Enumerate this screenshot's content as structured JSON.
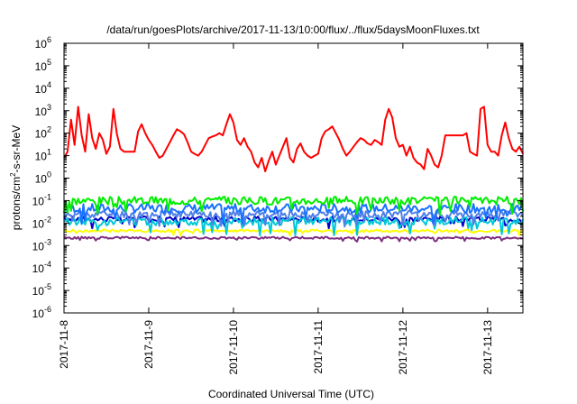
{
  "chart_data": {
    "type": "line",
    "title": "/data/run/goesPlots/archive/2017-11-13/10:00/flux/../flux/5daysMoonFluxes.txt",
    "xlabel": "Coordinated Universal Time (UTC)",
    "ylabel": {
      "base": "protons/cm",
      "sup": "2",
      "rest": "-s-sr-MeV"
    },
    "y_scale": "log",
    "ylim_exponents": [
      -6,
      6
    ],
    "y_ticks": [
      {
        "base": "10",
        "exp": "-6",
        "value": -6
      },
      {
        "base": "10",
        "exp": "-5",
        "value": -5
      },
      {
        "base": "10",
        "exp": "-4",
        "value": -4
      },
      {
        "base": "10",
        "exp": "-3",
        "value": -3
      },
      {
        "base": "10",
        "exp": "-2",
        "value": -2
      },
      {
        "base": "10",
        "exp": "-1",
        "value": -1
      },
      {
        "base": "10",
        "exp": "0",
        "value": 0
      },
      {
        "base": "10",
        "exp": "1",
        "value": 1
      },
      {
        "base": "10",
        "exp": "2",
        "value": 2
      },
      {
        "base": "10",
        "exp": "3",
        "value": 3
      },
      {
        "base": "10",
        "exp": "4",
        "value": 4
      },
      {
        "base": "10",
        "exp": "5",
        "value": 5
      },
      {
        "base": "10",
        "exp": "6",
        "value": 6
      }
    ],
    "x_range": [
      "2017-11-08T00:00",
      "2017-11-13T10:00"
    ],
    "x_ticks": [
      {
        "label": "2017-11-8",
        "date": "2017-11-08T00:00"
      },
      {
        "label": "2017-11-9",
        "date": "2017-11-09T00:00"
      },
      {
        "label": "2017-11-10",
        "date": "2017-11-10T00:00"
      },
      {
        "label": "2017-11-11",
        "date": "2017-11-11T00:00"
      },
      {
        "label": "2017-11-12",
        "date": "2017-11-12T00:00"
      },
      {
        "label": "2017-11-13",
        "date": "2017-11-13T00:00"
      }
    ],
    "grid": false,
    "legend": "none",
    "series": [
      {
        "color": "#ff0000",
        "points": [
          [
            "2017-11-08T00:00",
            8
          ],
          [
            "2017-11-08T01:00",
            15
          ],
          [
            "2017-11-08T02:00",
            400
          ],
          [
            "2017-11-08T03:00",
            30
          ],
          [
            "2017-11-08T04:00",
            1500
          ],
          [
            "2017-11-08T05:00",
            80
          ],
          [
            "2017-11-08T06:00",
            15
          ],
          [
            "2017-11-08T07:00",
            700
          ],
          [
            "2017-11-08T08:00",
            60
          ],
          [
            "2017-11-08T09:00",
            20
          ],
          [
            "2017-11-08T10:00",
            100
          ],
          [
            "2017-11-08T11:00",
            50
          ],
          [
            "2017-11-08T12:00",
            12
          ],
          [
            "2017-11-08T13:00",
            25
          ],
          [
            "2017-11-08T14:00",
            1200
          ],
          [
            "2017-11-08T15:00",
            90
          ],
          [
            "2017-11-08T16:00",
            20
          ],
          [
            "2017-11-08T17:00",
            15
          ],
          [
            "2017-11-08T18:00",
            15
          ],
          [
            "2017-11-08T19:00",
            15
          ],
          [
            "2017-11-08T20:00",
            15
          ],
          [
            "2017-11-08T21:00",
            120
          ],
          [
            "2017-11-08T22:00",
            250
          ],
          [
            "2017-11-08T23:00",
            100
          ],
          [
            "2017-11-09T00:00",
            50
          ],
          [
            "2017-11-09T01:00",
            30
          ],
          [
            "2017-11-09T02:00",
            15
          ],
          [
            "2017-11-09T03:00",
            8
          ],
          [
            "2017-11-09T04:00",
            10
          ],
          [
            "2017-11-09T05:00",
            20
          ],
          [
            "2017-11-09T06:00",
            40
          ],
          [
            "2017-11-09T07:00",
            80
          ],
          [
            "2017-11-09T08:00",
            150
          ],
          [
            "2017-11-09T09:00",
            120
          ],
          [
            "2017-11-09T10:00",
            90
          ],
          [
            "2017-11-09T11:00",
            40
          ],
          [
            "2017-11-09T12:00",
            15
          ],
          [
            "2017-11-09T13:00",
            12
          ],
          [
            "2017-11-09T14:00",
            10
          ],
          [
            "2017-11-09T15:00",
            15
          ],
          [
            "2017-11-09T16:00",
            30
          ],
          [
            "2017-11-09T17:00",
            60
          ],
          [
            "2017-11-09T18:00",
            70
          ],
          [
            "2017-11-09T19:00",
            80
          ],
          [
            "2017-11-09T20:00",
            100
          ],
          [
            "2017-11-09T21:00",
            80
          ],
          [
            "2017-11-09T22:00",
            250
          ],
          [
            "2017-11-09T23:00",
            700
          ],
          [
            "2017-11-10T00:00",
            300
          ],
          [
            "2017-11-10T01:00",
            50
          ],
          [
            "2017-11-10T02:00",
            30
          ],
          [
            "2017-11-10T03:00",
            60
          ],
          [
            "2017-11-10T04:00",
            25
          ],
          [
            "2017-11-10T05:00",
            15
          ],
          [
            "2017-11-10T06:00",
            5
          ],
          [
            "2017-11-10T07:00",
            3
          ],
          [
            "2017-11-10T08:00",
            8
          ],
          [
            "2017-11-10T09:00",
            2
          ],
          [
            "2017-11-10T10:00",
            6
          ],
          [
            "2017-11-10T11:00",
            15
          ],
          [
            "2017-11-10T12:00",
            4
          ],
          [
            "2017-11-10T13:00",
            10
          ],
          [
            "2017-11-10T14:00",
            25
          ],
          [
            "2017-11-10T15:00",
            60
          ],
          [
            "2017-11-10T16:00",
            8
          ],
          [
            "2017-11-10T17:00",
            5
          ],
          [
            "2017-11-10T18:00",
            20
          ],
          [
            "2017-11-10T19:00",
            35
          ],
          [
            "2017-11-10T20:00",
            15
          ],
          [
            "2017-11-10T21:00",
            10
          ],
          [
            "2017-11-10T22:00",
            8
          ],
          [
            "2017-11-10T23:00",
            10
          ],
          [
            "2017-11-11T00:00",
            12
          ],
          [
            "2017-11-11T01:00",
            60
          ],
          [
            "2017-11-11T02:00",
            120
          ],
          [
            "2017-11-11T03:00",
            150
          ],
          [
            "2017-11-11T04:00",
            200
          ],
          [
            "2017-11-11T05:00",
            100
          ],
          [
            "2017-11-11T06:00",
            50
          ],
          [
            "2017-11-11T07:00",
            20
          ],
          [
            "2017-11-11T08:00",
            10
          ],
          [
            "2017-11-11T09:00",
            15
          ],
          [
            "2017-11-11T10:00",
            25
          ],
          [
            "2017-11-11T11:00",
            40
          ],
          [
            "2017-11-11T12:00",
            60
          ],
          [
            "2017-11-11T13:00",
            50
          ],
          [
            "2017-11-11T14:00",
            35
          ],
          [
            "2017-11-11T15:00",
            30
          ],
          [
            "2017-11-11T16:00",
            50
          ],
          [
            "2017-11-11T17:00",
            40
          ],
          [
            "2017-11-11T18:00",
            30
          ],
          [
            "2017-11-11T19:00",
            400
          ],
          [
            "2017-11-11T20:00",
            1200
          ],
          [
            "2017-11-11T21:00",
            500
          ],
          [
            "2017-11-11T22:00",
            60
          ],
          [
            "2017-11-11T23:00",
            25
          ],
          [
            "2017-11-12T00:00",
            30
          ],
          [
            "2017-11-12T01:00",
            10
          ],
          [
            "2017-11-12T02:00",
            25
          ],
          [
            "2017-11-12T03:00",
            8
          ],
          [
            "2017-11-12T04:00",
            5
          ],
          [
            "2017-11-12T05:00",
            4
          ],
          [
            "2017-11-12T06:00",
            2.5
          ],
          [
            "2017-11-12T07:00",
            20
          ],
          [
            "2017-11-12T08:00",
            10
          ],
          [
            "2017-11-12T09:00",
            4
          ],
          [
            "2017-11-12T10:00",
            3
          ],
          [
            "2017-11-12T11:00",
            10
          ],
          [
            "2017-11-12T12:00",
            80
          ],
          [
            "2017-11-12T13:00",
            80
          ],
          [
            "2017-11-12T14:00",
            80
          ],
          [
            "2017-11-12T15:00",
            80
          ],
          [
            "2017-11-12T16:00",
            80
          ],
          [
            "2017-11-12T17:00",
            80
          ],
          [
            "2017-11-12T18:00",
            100
          ],
          [
            "2017-11-12T19:00",
            15
          ],
          [
            "2017-11-12T20:00",
            12
          ],
          [
            "2017-11-12T21:00",
            10
          ],
          [
            "2017-11-12T22:00",
            1200
          ],
          [
            "2017-11-12T23:00",
            1500
          ],
          [
            "2017-11-13T00:00",
            30
          ],
          [
            "2017-11-13T01:00",
            15
          ],
          [
            "2017-11-13T02:00",
            15
          ],
          [
            "2017-11-13T03:00",
            10
          ],
          [
            "2017-11-13T04:00",
            80
          ],
          [
            "2017-11-13T05:00",
            300
          ],
          [
            "2017-11-13T06:00",
            60
          ],
          [
            "2017-11-13T07:00",
            20
          ],
          [
            "2017-11-13T08:00",
            15
          ],
          [
            "2017-11-13T09:00",
            25
          ],
          [
            "2017-11-13T10:00",
            12
          ]
        ]
      },
      {
        "color": "#00ee00",
        "base": 0.1,
        "amplitude": 0.18,
        "seed": 3
      },
      {
        "color": "#1a72ff",
        "base": 0.045,
        "amplitude": 0.2,
        "seed": 7
      },
      {
        "color": "#4f7fe8",
        "base": 0.025,
        "amplitude": 0.16,
        "seed": 11
      },
      {
        "color": "#00c8d8",
        "base": 0.012,
        "amplitude": 0.18,
        "seed": 13
      },
      {
        "color": "#0000c8",
        "base": 0.015,
        "amplitude": 0.12,
        "seed": 17
      },
      {
        "color": "#ffff00",
        "base": 0.0045,
        "amplitude": 0.06,
        "seed": 19
      },
      {
        "color": "#7f2f7f",
        "base": 0.0022,
        "amplitude": 0.05,
        "seed": 23
      }
    ]
  }
}
